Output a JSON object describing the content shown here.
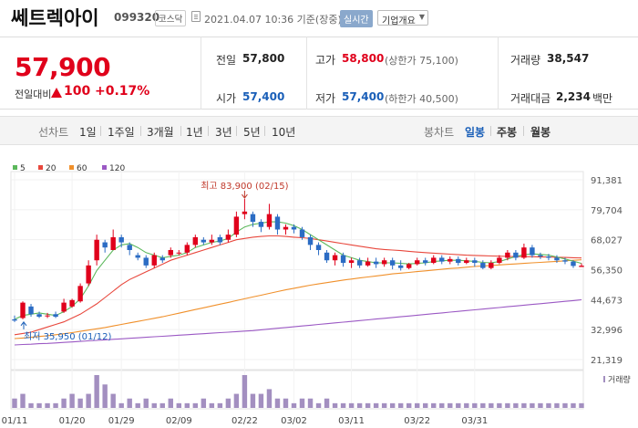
{
  "header": {
    "name": "쎄트렉아이",
    "code": "099320",
    "market": "코스닥",
    "datetime": "2021.04.07 10:36 기준(장중)",
    "realtime": "실시간",
    "company_overview": "기업개요"
  },
  "price": {
    "current": "57,900",
    "compare_label": "전일대비",
    "change": "100",
    "change_pct": "+0.17%",
    "direction": "up"
  },
  "stats": {
    "prev_close_label": "전일",
    "prev_close": "57,800",
    "high_label": "고가",
    "high": "58,800",
    "upper_limit_text": "(상한가 75,100)",
    "volume_label": "거래량",
    "volume": "38,547",
    "open_label": "시가",
    "open": "57,400",
    "low_label": "저가",
    "low": "57,400",
    "lower_limit_text": "(하한가 40,500)",
    "amount_label": "거래대금",
    "amount": "2,234",
    "amount_unit": "백만"
  },
  "period": {
    "line_label": "선차트",
    "line_items": [
      "1일",
      "1주일",
      "3개월",
      "1년",
      "3년",
      "5년",
      "10년"
    ],
    "candle_label": "봉차트",
    "candle_items": [
      "일봉",
      "주봉",
      "월봉"
    ],
    "candle_active": "일봉"
  },
  "colors": {
    "up": "#e0001b",
    "down": "#2b6cc4",
    "ma5": "#5cb85c",
    "ma20": "#e8473c",
    "ma60": "#f0902b",
    "ma120": "#9b59c4"
  },
  "chart_data": {
    "type": "candlestick",
    "legend": [
      "5",
      "20",
      "60",
      "120"
    ],
    "y_ticks": [
      "91,381",
      "79,704",
      "68,027",
      "56,350",
      "44,673",
      "32,996",
      "21,319"
    ],
    "ylim": [
      21319,
      91381
    ],
    "x_ticks": [
      "01/11",
      "01/20",
      "01/29",
      "02/09",
      "02/22",
      "03/02",
      "03/11",
      "03/22",
      "03/31"
    ],
    "high_annotation": "최고 83,900 (02/15)",
    "low_annotation": "최저 35,950 (01/12)",
    "volume_label": "거래량",
    "candles": [
      [
        37000,
        36500,
        38500,
        35950
      ],
      [
        37500,
        43500,
        44000,
        37000
      ],
      [
        42000,
        39000,
        43000,
        38000
      ],
      [
        39000,
        38000,
        40000,
        37500
      ],
      [
        38500,
        38500,
        39500,
        37500
      ],
      [
        39000,
        38000,
        40000,
        37500
      ],
      [
        40000,
        43500,
        45000,
        39500
      ],
      [
        42000,
        44500,
        45000,
        41500
      ],
      [
        44000,
        50000,
        51000,
        43500
      ],
      [
        51000,
        58000,
        60000,
        50000
      ],
      [
        60000,
        68000,
        70000,
        58000
      ],
      [
        67000,
        65000,
        68000,
        63000
      ],
      [
        64000,
        69000,
        72000,
        64000
      ],
      [
        69000,
        67000,
        70000,
        65000
      ],
      [
        66000,
        64000,
        67000,
        62000
      ],
      [
        62000,
        61000,
        63000,
        60000
      ],
      [
        61000,
        58000,
        62000,
        57000
      ],
      [
        58000,
        62000,
        63000,
        57000
      ],
      [
        61000,
        60000,
        62000,
        59000
      ],
      [
        62000,
        64000,
        65000,
        61000
      ],
      [
        63000,
        63000,
        64000,
        62000
      ],
      [
        63000,
        66000,
        67000,
        62000
      ],
      [
        66000,
        69000,
        70000,
        65000
      ],
      [
        68000,
        67000,
        69000,
        66000
      ],
      [
        67000,
        68000,
        70000,
        66000
      ],
      [
        69000,
        67000,
        70000,
        66000
      ],
      [
        68000,
        70000,
        72000,
        67000
      ],
      [
        70000,
        77000,
        79000,
        69000
      ],
      [
        78000,
        79000,
        83900,
        76000
      ],
      [
        78000,
        75000,
        79000,
        73000
      ],
      [
        75000,
        73000,
        76000,
        71000
      ],
      [
        73000,
        78000,
        82000,
        72000
      ],
      [
        77000,
        72000,
        78000,
        70000
      ],
      [
        72000,
        73000,
        74000,
        70000
      ],
      [
        73000,
        72000,
        74000,
        70500
      ],
      [
        72000,
        69000,
        73000,
        68000
      ],
      [
        69000,
        66000,
        70000,
        64000
      ],
      [
        66000,
        64000,
        67000,
        62000
      ],
      [
        63000,
        60000,
        64000,
        59000
      ],
      [
        60000,
        62000,
        63000,
        58000
      ],
      [
        62000,
        59000,
        63000,
        57500
      ],
      [
        59000,
        60000,
        61000,
        57000
      ],
      [
        60000,
        58000,
        61000,
        57000
      ],
      [
        58000,
        59500,
        61000,
        57500
      ],
      [
        59500,
        58500,
        61000,
        57000
      ],
      [
        58500,
        60000,
        61000,
        57500
      ],
      [
        60000,
        58000,
        61000,
        56500
      ],
      [
        58000,
        57000,
        60000,
        56000
      ],
      [
        57000,
        58500,
        59000,
        56500
      ],
      [
        58500,
        60000,
        61000,
        58000
      ],
      [
        60000,
        59000,
        61000,
        58000
      ],
      [
        59000,
        61000,
        62000,
        58500
      ],
      [
        61000,
        59500,
        62000,
        58500
      ],
      [
        59500,
        60500,
        61500,
        58500
      ],
      [
        60500,
        59000,
        61500,
        58000
      ],
      [
        59000,
        60000,
        61000,
        58500
      ],
      [
        60000,
        59000,
        61000,
        57500
      ],
      [
        59000,
        57000,
        60000,
        56500
      ],
      [
        57000,
        59000,
        60000,
        56500
      ],
      [
        59000,
        61000,
        62000,
        58500
      ],
      [
        61000,
        63000,
        64000,
        60000
      ],
      [
        63000,
        61000,
        64000,
        60000
      ],
      [
        61000,
        65000,
        66500,
        60500
      ],
      [
        65000,
        62000,
        66000,
        61000
      ],
      [
        62000,
        61500,
        63000,
        60500
      ],
      [
        61500,
        61000,
        62500,
        60000
      ],
      [
        61000,
        60000,
        62000,
        59000
      ],
      [
        60000,
        59500,
        61000,
        58500
      ],
      [
        59500,
        57800,
        60000,
        57000
      ],
      [
        57400,
        57900,
        58800,
        57400
      ]
    ],
    "volumes": [
      2,
      3,
      1,
      1,
      1,
      1,
      2,
      3,
      2,
      3,
      7,
      5,
      3,
      1,
      2,
      1,
      2,
      1,
      1,
      2,
      1,
      1,
      1,
      2,
      1,
      1,
      2,
      3,
      7,
      3,
      3,
      4,
      2,
      2,
      1,
      2,
      2,
      1,
      2,
      1,
      1,
      1,
      1,
      1,
      1,
      1,
      1,
      1,
      1,
      1,
      1,
      1,
      1,
      1,
      1,
      1,
      1,
      1,
      1,
      1,
      1,
      1,
      1,
      1,
      1,
      1,
      1,
      1,
      1,
      1
    ],
    "ma5": [
      37000,
      38500,
      39000,
      39500,
      39000,
      38500,
      40000,
      42000,
      45000,
      50000,
      56000,
      60000,
      64000,
      66000,
      66500,
      65000,
      63000,
      62000,
      61000,
      61500,
      62000,
      63000,
      65000,
      66000,
      67000,
      67500,
      68500,
      71000,
      73000,
      74000,
      74500,
      75000,
      75000,
      74500,
      73500,
      72000,
      70000,
      68000,
      66000,
      64000,
      62000,
      61000,
      60000,
      59500,
      59000,
      59000,
      59000,
      58800,
      58600,
      58800,
      59000,
      59500,
      59800,
      60000,
      60000,
      59800,
      59600,
      59200,
      59000,
      59500,
      60500,
      61500,
      62200,
      62500,
      62300,
      62000,
      61300,
      60500,
      59700,
      58800
    ],
    "ma20": [
      31000,
      31500,
      32000,
      33000,
      34000,
      35000,
      36000,
      37500,
      39000,
      41000,
      43000,
      45500,
      48000,
      50500,
      52500,
      54000,
      55500,
      57000,
      58500,
      60000,
      61000,
      62000,
      63000,
      64000,
      65000,
      66000,
      67000,
      68000,
      68500,
      69000,
      69300,
      69500,
      69500,
      69300,
      69000,
      68800,
      68500,
      68000,
      67500,
      67000,
      66500,
      66000,
      65500,
      65000,
      64500,
      64200,
      64000,
      63800,
      63500,
      63200,
      63000,
      62800,
      62600,
      62400,
      62200,
      62000,
      61900,
      61800,
      61700,
      61600,
      61500,
      61500,
      61400,
      61400,
      61300,
      61300,
      61200,
      61100,
      61000,
      60900
    ],
    "ma60": [
      29500,
      29700,
      30000,
      30300,
      30600,
      31000,
      31400,
      31800,
      32300,
      32800,
      33300,
      33800,
      34400,
      35000,
      35600,
      36200,
      36800,
      37400,
      38000,
      38700,
      39400,
      40100,
      40800,
      41500,
      42200,
      42900,
      43600,
      44300,
      45000,
      45700,
      46400,
      47100,
      47800,
      48500,
      49100,
      49700,
      50300,
      50800,
      51300,
      51800,
      52300,
      52700,
      53100,
      53500,
      53900,
      54300,
      54700,
      55000,
      55300,
      55600,
      55900,
      56200,
      56500,
      56800,
      57000,
      57300,
      57600,
      57800,
      58000,
      58200,
      58400,
      58600,
      58800,
      59000,
      59200,
      59400,
      59600,
      59800,
      60000,
      60200
    ],
    "ma120": [
      27000,
      27200,
      27300,
      27500,
      27600,
      27800,
      28000,
      28200,
      28400,
      28600,
      28800,
      29000,
      29200,
      29400,
      29600,
      29800,
      30000,
      30200,
      30400,
      30600,
      30800,
      31000,
      31200,
      31400,
      31600,
      31800,
      32000,
      32200,
      32400,
      32600,
      32900,
      33200,
      33500,
      33800,
      34100,
      34400,
      34700,
      35000,
      35300,
      35600,
      35900,
      36200,
      36500,
      36800,
      37100,
      37400,
      37700,
      38000,
      38300,
      38600,
      38900,
      39200,
      39500,
      39800,
      40100,
      40400,
      40700,
      41000,
      41300,
      41600,
      41900,
      42200,
      42500,
      42800,
      43100,
      43400,
      43700,
      44000,
      44300,
      44600
    ]
  }
}
